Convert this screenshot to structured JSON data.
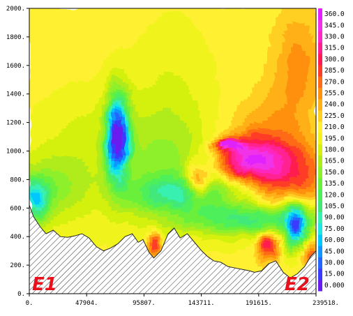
{
  "chart_data": {
    "type": "heatmap",
    "title": "",
    "xlabel": "",
    "ylabel": "",
    "xlim": [
      0,
      239518
    ],
    "ylim": [
      0,
      2000
    ],
    "x_ticks": [
      "0.",
      "47904.",
      "95807.",
      "143711.",
      "191615.",
      "239518."
    ],
    "x_tick_values": [
      0,
      47904,
      95807,
      143711,
      191615,
      239518
    ],
    "y_ticks": [
      "0.",
      "200.",
      "400.",
      "600.",
      "800.",
      "1000.",
      "1200.",
      "1400.",
      "1600.",
      "1800.",
      "2000."
    ],
    "y_tick_values": [
      0,
      200,
      400,
      600,
      800,
      1000,
      1200,
      1400,
      1600,
      1800,
      2000
    ],
    "colorbar": {
      "labels": [
        "0.000",
        "15.00",
        "30.00",
        "45.00",
        "60.00",
        "75.00",
        "90.00",
        "105.0",
        "120.0",
        "135.0",
        "150.0",
        "165.0",
        "180.0",
        "195.0",
        "210.0",
        "225.0",
        "240.0",
        "255.0",
        "270.0",
        "285.0",
        "300.0",
        "315.0",
        "330.0",
        "345.0",
        "360.0"
      ],
      "min": 0,
      "max": 360,
      "colors": [
        "#6a1cf0",
        "#3b3bff",
        "#2266ff",
        "#1196ff",
        "#00c8ff",
        "#1fe6e0",
        "#37f0b0",
        "#43e87a",
        "#4df05a",
        "#6af03a",
        "#8ef02a",
        "#b0ec1a",
        "#d4f010",
        "#f0f41a",
        "#fff030",
        "#ffd020",
        "#ffb014",
        "#ff9010",
        "#ff6a14",
        "#ff3c28",
        "#ff1c50",
        "#ff2090",
        "#ff28c0",
        "#f030e8",
        "#e020ff"
      ]
    },
    "terrain": [
      [
        0,
        620
      ],
      [
        3500,
        540
      ],
      [
        9000,
        470
      ],
      [
        14000,
        420
      ],
      [
        20000,
        445
      ],
      [
        26000,
        400
      ],
      [
        32000,
        395
      ],
      [
        38000,
        405
      ],
      [
        44000,
        420
      ],
      [
        50000,
        390
      ],
      [
        56000,
        330
      ],
      [
        62000,
        300
      ],
      [
        68000,
        320
      ],
      [
        74000,
        350
      ],
      [
        80000,
        400
      ],
      [
        86000,
        420
      ],
      [
        91000,
        360
      ],
      [
        95000,
        380
      ],
      [
        100000,
        290
      ],
      [
        104000,
        250
      ],
      [
        110000,
        300
      ],
      [
        116000,
        420
      ],
      [
        121000,
        460
      ],
      [
        126000,
        390
      ],
      [
        132000,
        420
      ],
      [
        138000,
        360
      ],
      [
        144000,
        300
      ],
      [
        149000,
        260
      ],
      [
        154000,
        230
      ],
      [
        160000,
        220
      ],
      [
        166000,
        190
      ],
      [
        172000,
        180
      ],
      [
        178000,
        170
      ],
      [
        184000,
        160
      ],
      [
        188000,
        150
      ],
      [
        194000,
        160
      ],
      [
        200000,
        210
      ],
      [
        206000,
        230
      ],
      [
        212000,
        150
      ],
      [
        218000,
        110
      ],
      [
        224000,
        140
      ],
      [
        230000,
        190
      ],
      [
        235000,
        260
      ],
      [
        239518,
        300
      ]
    ],
    "end_labels": [
      "E1",
      "E2"
    ]
  }
}
